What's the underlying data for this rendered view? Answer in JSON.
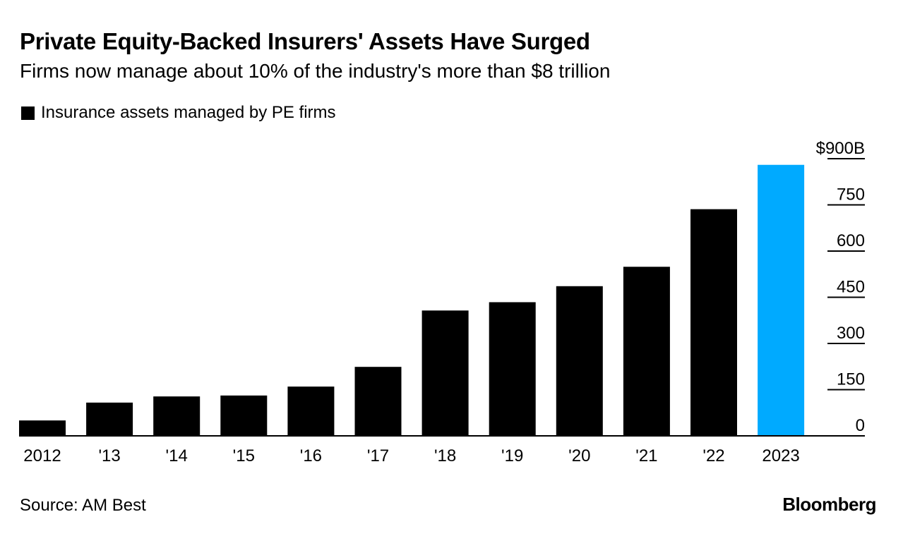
{
  "chart_data": {
    "type": "bar",
    "title": "Private Equity-Backed Insurers' Assets Have Surged",
    "subtitle": "Firms now manage about 10% of the industry's more than $8 trillion",
    "legend": "Insurance assets managed by PE firms",
    "categories": [
      "2012",
      "'13",
      "'14",
      "'15",
      "'16",
      "'17",
      "'18",
      "'19",
      "'20",
      "'21",
      "'22",
      "2023"
    ],
    "values": [
      50,
      108,
      128,
      131,
      160,
      224,
      407,
      434,
      486,
      549,
      736,
      880
    ],
    "highlight_index": 11,
    "y_ticks": [
      "$900B",
      "750",
      "600",
      "450",
      "300",
      "150",
      "0"
    ],
    "y_tick_values": [
      900,
      750,
      600,
      450,
      300,
      150,
      0
    ],
    "ylim": [
      0,
      900
    ],
    "xlabel": "",
    "ylabel": "",
    "colors": {
      "bar": "#000000",
      "highlight": "#00aaff",
      "axis": "#000000"
    }
  },
  "footer": {
    "source": "Source: AM Best",
    "brand": "Bloomberg"
  }
}
